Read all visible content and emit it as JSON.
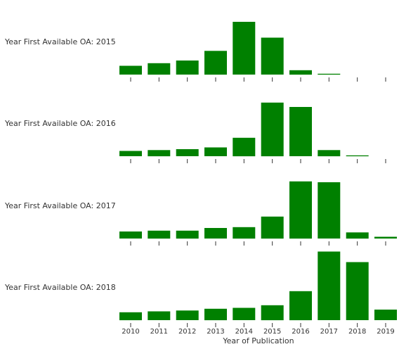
{
  "chart_data": {
    "type": "bar",
    "xlabel": "Year of Publication",
    "categories": [
      "2010",
      "2011",
      "2012",
      "2013",
      "2014",
      "2015",
      "2016",
      "2017",
      "2018",
      "2019"
    ],
    "bar_color": "#008000",
    "shared_y": true,
    "y_max": 60,
    "series": [
      {
        "name": "Year First Available OA: 2015",
        "values": [
          10,
          13,
          16,
          27,
          60,
          42,
          5,
          1,
          0,
          0
        ]
      },
      {
        "name": "Year First Available OA: 2016",
        "values": [
          6,
          7,
          8,
          10,
          21,
          61,
          56,
          7,
          1,
          0
        ]
      },
      {
        "name": "Year First Available OA: 2017",
        "values": [
          8,
          9,
          9,
          12,
          13,
          25,
          65,
          64,
          7,
          2
        ]
      },
      {
        "name": "Year First Available OA: 2018",
        "values": [
          9,
          10,
          11,
          13,
          14,
          17,
          33,
          78,
          66,
          12
        ]
      }
    ]
  }
}
